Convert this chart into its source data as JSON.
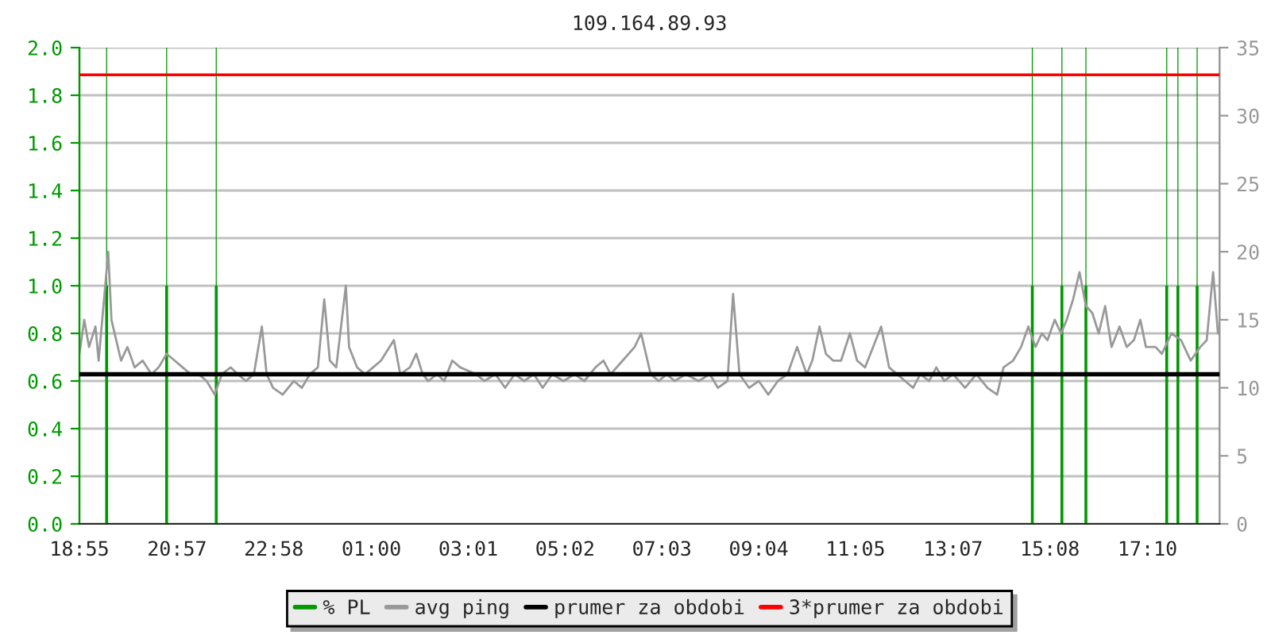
{
  "chart_data": {
    "type": "line",
    "title": "109.164.89.93",
    "xlim": [
      "2000-01-01T18:55",
      "2000-01-02T18:40"
    ],
    "xticks": [
      {
        "value": "2000-01-01T18:55",
        "label": "18:55"
      },
      {
        "value": "2000-01-01T20:57",
        "label": "20:57"
      },
      {
        "value": "2000-01-01T22:58",
        "label": "22:58"
      },
      {
        "value": "2000-01-02T01:00",
        "label": "01:00"
      },
      {
        "value": "2000-01-02T03:01",
        "label": "03:01"
      },
      {
        "value": "2000-01-02T05:02",
        "label": "05:02"
      },
      {
        "value": "2000-01-02T07:03",
        "label": "07:03"
      },
      {
        "value": "2000-01-02T09:04",
        "label": "09:04"
      },
      {
        "value": "2000-01-02T11:05",
        "label": "11:05"
      },
      {
        "value": "2000-01-02T13:07",
        "label": "13:07"
      },
      {
        "value": "2000-01-02T15:08",
        "label": "15:08"
      },
      {
        "value": "2000-01-02T17:10",
        "label": "17:10"
      }
    ],
    "ylim": [
      0,
      2
    ],
    "yticks": [
      {
        "value": 0,
        "label": "0.0"
      },
      0.2,
      0.4,
      0.6,
      0.8,
      {
        "value": 1,
        "label": "1.0"
      },
      1.2,
      1.4,
      1.6,
      1.8,
      {
        "value": 2,
        "label": "2.0"
      }
    ],
    "y2lim": [
      0,
      35
    ],
    "y2ticks": [
      0,
      5,
      10,
      15,
      20,
      25,
      30,
      35
    ],
    "grid": "y",
    "legend": "bottom",
    "marker": "none",
    "line_style": "solid",
    "series": [
      {
        "name": "% PL",
        "type": "bar",
        "color": "#009900",
        "x": [
          "2000-01-01T19:29",
          "2000-01-01T20:44",
          "2000-01-01T21:46",
          "2000-01-02T14:46",
          "2000-01-02T15:23",
          "2000-01-02T15:53",
          "2000-01-02T17:34",
          "2000-01-02T17:48",
          "2000-01-02T18:12"
        ],
        "values": [
          1,
          1,
          1,
          1,
          1,
          1,
          1,
          1,
          1
        ]
      },
      {
        "type": "bar",
        "color": "#009900",
        "x": [
          "2000-01-01T19:29",
          "2000-01-01T20:44",
          "2000-01-01T21:46",
          "2000-01-02T14:46",
          "2000-01-02T15:23",
          "2000-01-02T15:53",
          "2000-01-02T17:34",
          "2000-01-02T17:48",
          "2000-01-02T18:12"
        ],
        "values": [
          2,
          2,
          2,
          2,
          2,
          2,
          2,
          2,
          2
        ]
      },
      {
        "name": "avg ping",
        "axis": "y2",
        "color": "#999999",
        "x": [
          "2000-01-01T18:55",
          "2000-01-01T19:01",
          "2000-01-01T19:07",
          "2000-01-01T19:15",
          "2000-01-01T19:19",
          "2000-01-01T19:25",
          "2000-01-01T19:31",
          "2000-01-01T19:35",
          "2000-01-01T19:41",
          "2000-01-01T19:47",
          "2000-01-01T19:55",
          "2000-01-01T20:04",
          "2000-01-01T20:14",
          "2000-01-01T20:25",
          "2000-01-01T20:34",
          "2000-01-01T20:44",
          "2000-01-01T20:54",
          "2000-01-01T21:04",
          "2000-01-01T21:14",
          "2000-01-01T21:24",
          "2000-01-01T21:34",
          "2000-01-01T21:44",
          "2000-01-01T21:53",
          "2000-01-01T22:04",
          "2000-01-01T22:13",
          "2000-01-01T22:23",
          "2000-01-01T22:33",
          "2000-01-01T22:43",
          "2000-01-01T22:49",
          "2000-01-01T22:57",
          "2000-01-01T23:09",
          "2000-01-01T23:23",
          "2000-01-01T23:33",
          "2000-01-01T23:43",
          "2000-01-01T23:53",
          "2000-01-02T00:01",
          "2000-01-02T00:08",
          "2000-01-02T00:16",
          "2000-01-02T00:28",
          "2000-01-02T00:32",
          "2000-01-02T00:42",
          "2000-01-02T00:52",
          "2000-01-02T01:02",
          "2000-01-02T01:12",
          "2000-01-02T01:28",
          "2000-01-02T01:36",
          "2000-01-02T01:48",
          "2000-01-02T01:56",
          "2000-01-02T02:04",
          "2000-01-02T02:11",
          "2000-01-02T02:22",
          "2000-01-02T02:31",
          "2000-01-02T02:41",
          "2000-01-02T02:51",
          "2000-01-02T03:11",
          "2000-01-02T03:21",
          "2000-01-02T03:35",
          "2000-01-02T03:47",
          "2000-01-02T03:59",
          "2000-01-02T04:11",
          "2000-01-02T04:23",
          "2000-01-02T04:34",
          "2000-01-02T04:46",
          "2000-01-02T05:00",
          "2000-01-02T05:14",
          "2000-01-02T05:26",
          "2000-01-02T05:40",
          "2000-01-02T05:50",
          "2000-01-02T05:59",
          "2000-01-02T06:14",
          "2000-01-02T06:29",
          "2000-01-02T06:37",
          "2000-01-02T06:49",
          "2000-01-02T06:59",
          "2000-01-02T07:09",
          "2000-01-02T07:19",
          "2000-01-02T07:33",
          "2000-01-02T07:49",
          "2000-01-02T08:03",
          "2000-01-02T08:13",
          "2000-01-02T08:25",
          "2000-01-02T08:32",
          "2000-01-02T08:40",
          "2000-01-02T08:52",
          "2000-01-02T09:04",
          "2000-01-02T09:16",
          "2000-01-02T09:28",
          "2000-01-02T09:40",
          "2000-01-02T09:52",
          "2000-01-02T10:04",
          "2000-01-02T10:11",
          "2000-01-02T10:20",
          "2000-01-02T10:28",
          "2000-01-02T10:37",
          "2000-01-02T10:47",
          "2000-01-02T10:58",
          "2000-01-02T11:07",
          "2000-01-02T11:17",
          "2000-01-02T11:27",
          "2000-01-02T11:37",
          "2000-01-02T11:47",
          "2000-01-02T11:57",
          "2000-01-02T12:07",
          "2000-01-02T12:17",
          "2000-01-02T12:26",
          "2000-01-02T12:37",
          "2000-01-02T12:46",
          "2000-01-02T12:56",
          "2000-01-02T13:07",
          "2000-01-02T13:22",
          "2000-01-02T13:36",
          "2000-01-02T13:50",
          "2000-01-02T14:02",
          "2000-01-02T14:10",
          "2000-01-02T14:22",
          "2000-01-02T14:32",
          "2000-01-02T14:41",
          "2000-01-02T14:50",
          "2000-01-02T14:58",
          "2000-01-02T15:05",
          "2000-01-02T15:14",
          "2000-01-02T15:22",
          "2000-01-02T15:29",
          "2000-01-02T15:37",
          "2000-01-02T15:45",
          "2000-01-02T15:53",
          "2000-01-02T16:01",
          "2000-01-02T16:09",
          "2000-01-02T16:17",
          "2000-01-02T16:25",
          "2000-01-02T16:35",
          "2000-01-02T16:44",
          "2000-01-02T16:53",
          "2000-01-02T17:01",
          "2000-01-02T17:08",
          "2000-01-02T17:20",
          "2000-01-02T17:28",
          "2000-01-02T17:40",
          "2000-01-02T17:52",
          "2000-01-02T18:04",
          "2000-01-02T18:16",
          "2000-01-02T18:24",
          "2000-01-02T18:32",
          "2000-01-02T18:38"
        ],
        "values": [
          12.5,
          15,
          13,
          14.5,
          12,
          16,
          20,
          15,
          13.5,
          12,
          13,
          11.5,
          12,
          11,
          11.5,
          12.5,
          12,
          11.5,
          11,
          11,
          10.5,
          9.5,
          11,
          11.5,
          11,
          10.5,
          11,
          14.5,
          11,
          10,
          9.5,
          10.5,
          10,
          11,
          11.5,
          16.5,
          12,
          11.5,
          17.5,
          13,
          11.5,
          11,
          11.5,
          12,
          13.5,
          11,
          11.5,
          12.5,
          11,
          10.5,
          11,
          10.5,
          12,
          11.5,
          11,
          10.5,
          11,
          10,
          11,
          10.5,
          11,
          10,
          11,
          10.5,
          11,
          10.5,
          11.5,
          12,
          11,
          12,
          13,
          14,
          11,
          10.5,
          11,
          10.5,
          11,
          10.5,
          11,
          10,
          10.5,
          16.9,
          11,
          10,
          10.5,
          9.5,
          10.5,
          11,
          13,
          11,
          12,
          14.5,
          12.5,
          12,
          12,
          14,
          12,
          11.5,
          13,
          14.5,
          11.5,
          11,
          10.5,
          10,
          11,
          10.5,
          11.5,
          10.5,
          11,
          10,
          11,
          10,
          9.5,
          11.5,
          12,
          13,
          14.5,
          13,
          14,
          13.5,
          15,
          14,
          15,
          16.5,
          18.5,
          16,
          15.5,
          14,
          16,
          13,
          14.5,
          13,
          13.5,
          15,
          13,
          13,
          12.5,
          14,
          13.5,
          12,
          13,
          13.5,
          18.5,
          14
        ]
      }
    ],
    "ref_lines": [
      {
        "axis": "y2",
        "value": 11,
        "label": "prumer za obdobi",
        "color": "#000000",
        "line_style": "solid"
      },
      {
        "axis": "y2",
        "value": 33,
        "label": "3*prumer za obdobi",
        "color": "#ff0000",
        "line_style": "solid"
      }
    ]
  }
}
